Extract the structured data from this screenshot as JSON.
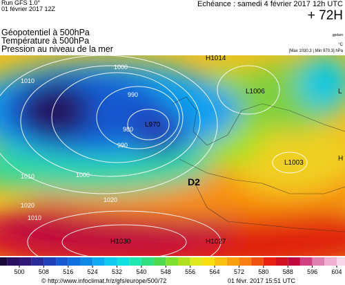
{
  "header": {
    "run": "Run GFS 1.0°",
    "run_date": "01 février 2017 12Z",
    "valid": "Echéance : samedi 4 février 2017 12h UTC",
    "lead": "+ 72H",
    "fields": [
      "Géopotentiel à 500hPa",
      "Température à 500hPa",
      "Pression au niveau de la mer"
    ],
    "units": [
      "gpdam",
      "°C",
      "[Max 1030.3 | Min 970.3] hPa"
    ]
  },
  "map": {
    "marker": "D2",
    "centers": [
      {
        "label": "H1014"
      },
      {
        "label": "L1006"
      },
      {
        "label": "L970"
      },
      {
        "label": "H1030"
      },
      {
        "label": "H1027"
      },
      {
        "label": "L1003"
      },
      {
        "label": "L"
      },
      {
        "label": "H"
      }
    ],
    "isobar_labels": [
      "1010",
      "1000",
      "990",
      "980",
      "990",
      "1000",
      "1010",
      "1020",
      "1020",
      "1010"
    ]
  },
  "colorbar": {
    "ticks": [
      500,
      508,
      516,
      524,
      532,
      540,
      548,
      556,
      564,
      572,
      580,
      588,
      596,
      604
    ],
    "start": 492,
    "step": 4,
    "colors": [
      "#1a0a3a",
      "#2a1060",
      "#301878",
      "#2a2a9a",
      "#2040b8",
      "#1858d0",
      "#1070e0",
      "#1088e8",
      "#10a8f0",
      "#10c8f0",
      "#10e0e0",
      "#20e8b0",
      "#30e080",
      "#50d850",
      "#80e030",
      "#b0e020",
      "#e0e820",
      "#f8e010",
      "#f8c010",
      "#f8a010",
      "#f88010",
      "#f05010",
      "#e82010",
      "#d01020",
      "#c00840",
      "#d04080",
      "#e080b0",
      "#f0b0d0",
      "#f8d8e8"
    ]
  },
  "footer": {
    "source": "© http://www.infoclimat.fr/z/gfs/europe/500/72",
    "generated": "01 févr. 2017 15:51 UTC"
  }
}
